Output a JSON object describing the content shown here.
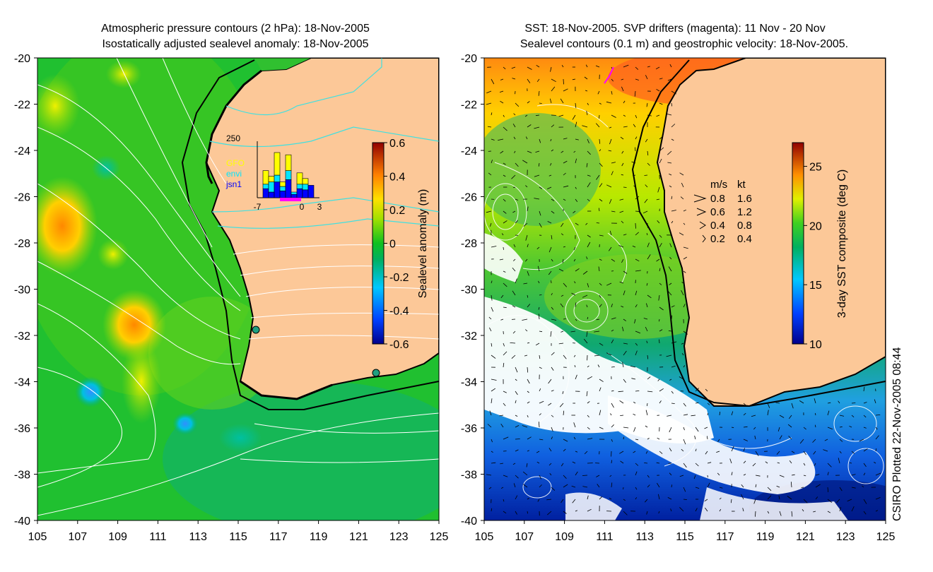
{
  "left_panel": {
    "title_line1": "Atmospheric pressure contours (2 hPa): 18-Nov-2005",
    "title_line2": "Isostatically adjusted sealevel anomaly: 18-Nov-2005",
    "colorbar": {
      "label": "Sealevel anomaly (m)",
      "ticks": [
        "0.6",
        "0.4",
        "0.2",
        "0",
        "-0.2",
        "-0.4",
        "-0.6"
      ],
      "range": [
        -0.6,
        0.6
      ]
    },
    "inset": {
      "y_max_label": "250",
      "legend": [
        {
          "label": "GFO",
          "color": "#ffff00"
        },
        {
          "label": "envi",
          "color": "#00e5ff"
        },
        {
          "label": "jsn1",
          "color": "#0000ff"
        }
      ],
      "x_labels": [
        "-7",
        "0",
        "3"
      ],
      "bars": [
        {
          "blue": 0,
          "cyan": 0,
          "yellow": 0
        },
        {
          "blue": 40,
          "cyan": 20,
          "yellow": 60
        },
        {
          "blue": 25,
          "cyan": 45,
          "yellow": 25
        },
        {
          "blue": 70,
          "cyan": 30,
          "yellow": 100
        },
        {
          "blue": 30,
          "cyan": 20,
          "yellow": 20
        },
        {
          "blue": 80,
          "cyan": 40,
          "yellow": 70
        },
        {
          "blue": 15,
          "cyan": 10,
          "yellow": 0
        },
        {
          "blue": 40,
          "cyan": 20,
          "yellow": 50
        },
        {
          "blue": 35,
          "cyan": 25,
          "yellow": 25
        },
        {
          "blue": 55,
          "cyan": 0,
          "yellow": 0
        }
      ]
    }
  },
  "right_panel": {
    "title_line1": "SST: 18-Nov-2005. SVP drifters (magenta): 11 Nov - 20 Nov",
    "title_line2": "Sealevel contours (0.1 m) and geostrophic velocity: 18-Nov-2005.",
    "colorbar": {
      "label": "3-day SST composite (deg C)",
      "ticks": [
        "25",
        "20",
        "15",
        "10"
      ],
      "range": [
        10,
        27
      ]
    },
    "velocity_legend": {
      "header_ms": "m/s",
      "header_kt": "kt",
      "rows": [
        {
          "ms": "0.8",
          "kt": "1.6"
        },
        {
          "ms": "0.6",
          "kt": "1.2"
        },
        {
          "ms": "0.4",
          "kt": "0.8"
        },
        {
          "ms": "0.2",
          "kt": "0.4"
        }
      ]
    }
  },
  "axes": {
    "x_ticks": [
      "105",
      "107",
      "109",
      "111",
      "113",
      "115",
      "117",
      "119",
      "121",
      "123",
      "125"
    ],
    "y_ticks": [
      "-20",
      "-22",
      "-24",
      "-26",
      "-28",
      "-30",
      "-32",
      "-34",
      "-36",
      "-38",
      "-40"
    ],
    "lon_range": [
      105,
      125
    ],
    "lat_range": [
      -20,
      -40
    ]
  },
  "footer": {
    "plot_stamp": "CSIRO Plotted 22-Nov-2005 08:44"
  },
  "colors": {
    "land": "#fcc898",
    "coast": "#000000",
    "contour": "#ffffff",
    "cyan_contour": "#40e0e0",
    "drifter": "#ff00ff"
  }
}
